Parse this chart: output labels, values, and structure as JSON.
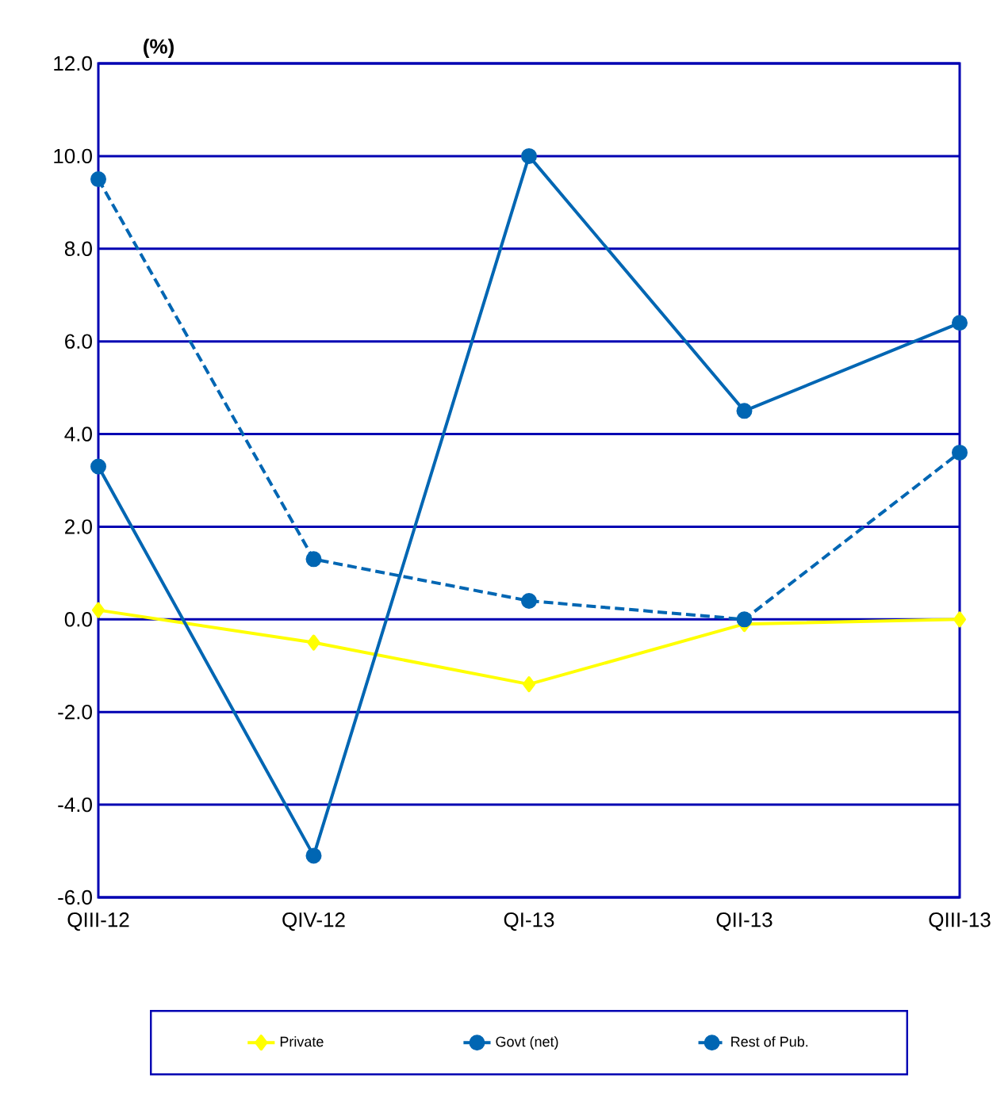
{
  "chart_data": {
    "type": "line",
    "ylabel": "(%)",
    "categories": [
      "QIII-12",
      "QIV-12",
      "QI-13",
      "QII-13",
      "QIII-13"
    ],
    "series": [
      {
        "name": "Private",
        "color": "#ffff00",
        "values": [
          0.2,
          -0.5,
          -1.4,
          -0.1,
          0.0
        ],
        "marker": "diamond",
        "line_style": "solid"
      },
      {
        "name": "Govt (net)",
        "color": "#0066b3",
        "values": [
          3.3,
          -5.1,
          10.0,
          4.5,
          6.4
        ],
        "marker": "circle",
        "line_style": "solid"
      },
      {
        "name": "Rest of Pub.",
        "color": "#0066b3",
        "values": [
          9.5,
          1.3,
          0.4,
          0.0,
          3.6
        ],
        "marker": "circle",
        "line_style": "dashed"
      }
    ],
    "ylim": [
      -6,
      12
    ],
    "yticks": [
      {
        "value": -6,
        "label": "-6.0"
      },
      {
        "value": -4,
        "label": "-4.0"
      },
      {
        "value": -2,
        "label": "-2.0"
      },
      {
        "value": 0,
        "label": "0.0"
      },
      {
        "value": 2,
        "label": "2.0"
      },
      {
        "value": 4,
        "label": "4.0"
      },
      {
        "value": 6,
        "label": "6.0"
      },
      {
        "value": 8,
        "label": "8.0"
      },
      {
        "value": 10,
        "label": "10.0"
      },
      {
        "value": 12,
        "label": "12.0"
      }
    ],
    "grid": "y",
    "legend": "bottom"
  }
}
